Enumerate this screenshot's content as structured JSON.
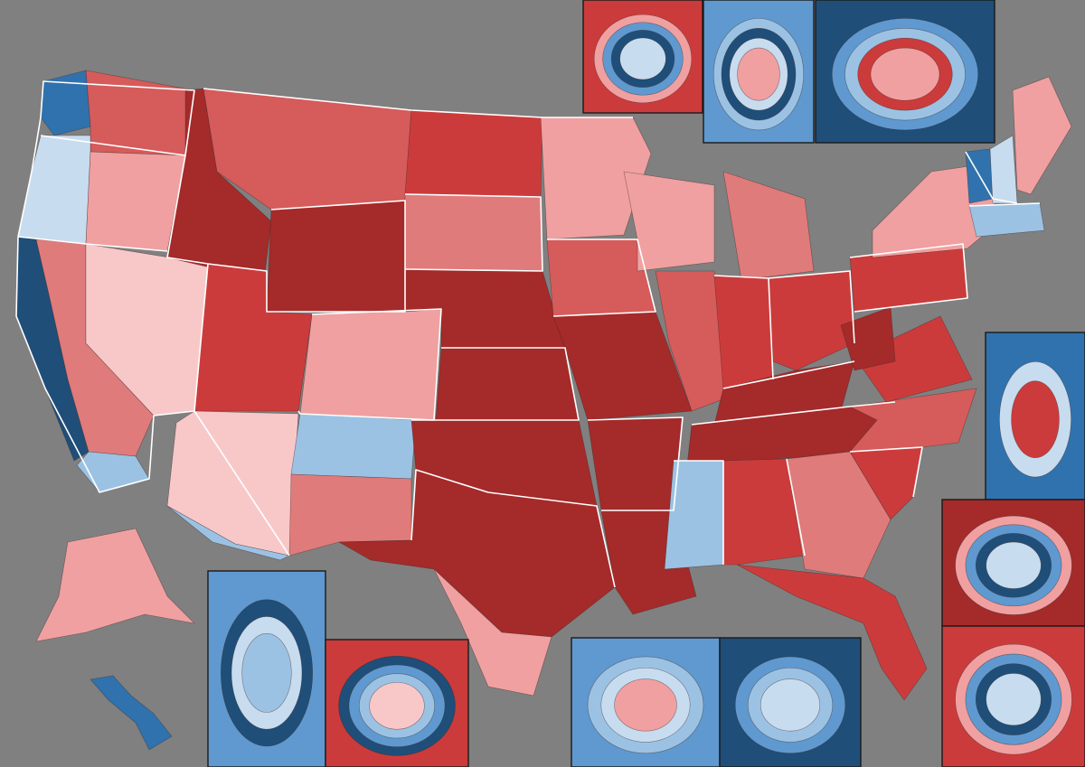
{
  "map": {
    "type": "choropleth",
    "subject": "congressional-districts",
    "background_color": "#808080",
    "border_color": "#ffffff",
    "palette": {
      "r_safe": "#a52a2a",
      "r_likely": "#cc3b3b",
      "r_lean": "#d65b5b",
      "r_tilt": "#e07b7b",
      "r_slight": "#f0a0a0",
      "r_faint": "#f8c8c8",
      "d_faint": "#c8dcef",
      "d_slight": "#9cc2e3",
      "d_lean": "#5f99cf",
      "d_likely": "#3072ad",
      "d_safe": "#1f4e79"
    },
    "regions": [
      {
        "id": "WA-west",
        "shade": "d_likely"
      },
      {
        "id": "WA-east",
        "shade": "r_lean"
      },
      {
        "id": "OR-west",
        "shade": "d_faint"
      },
      {
        "id": "OR-east",
        "shade": "r_slight"
      },
      {
        "id": "CA-coast",
        "shade": "d_safe"
      },
      {
        "id": "CA-inland",
        "shade": "r_tilt"
      },
      {
        "id": "CA-south",
        "shade": "d_slight"
      },
      {
        "id": "NV",
        "shade": "r_faint"
      },
      {
        "id": "ID",
        "shade": "r_safe"
      },
      {
        "id": "MT",
        "shade": "r_lean"
      },
      {
        "id": "WY",
        "shade": "r_safe"
      },
      {
        "id": "UT",
        "shade": "r_likely"
      },
      {
        "id": "AZ",
        "shade": "r_faint"
      },
      {
        "id": "AZ-south",
        "shade": "d_slight"
      },
      {
        "id": "CO",
        "shade": "r_slight"
      },
      {
        "id": "NM-north",
        "shade": "d_slight"
      },
      {
        "id": "NM-south",
        "shade": "r_tilt"
      },
      {
        "id": "ND",
        "shade": "r_likely"
      },
      {
        "id": "SD",
        "shade": "r_tilt"
      },
      {
        "id": "NE",
        "shade": "r_safe"
      },
      {
        "id": "KS",
        "shade": "r_safe"
      },
      {
        "id": "OK",
        "shade": "r_safe"
      },
      {
        "id": "TX",
        "shade": "r_safe"
      },
      {
        "id": "TX-south",
        "shade": "r_slight"
      },
      {
        "id": "MN",
        "shade": "r_slight"
      },
      {
        "id": "IA",
        "shade": "r_lean"
      },
      {
        "id": "MO",
        "shade": "r_safe"
      },
      {
        "id": "AR",
        "shade": "r_safe"
      },
      {
        "id": "LA",
        "shade": "r_safe"
      },
      {
        "id": "WI",
        "shade": "r_slight"
      },
      {
        "id": "IL",
        "shade": "r_lean"
      },
      {
        "id": "MI",
        "shade": "r_tilt"
      },
      {
        "id": "IN",
        "shade": "r_likely"
      },
      {
        "id": "OH",
        "shade": "r_likely"
      },
      {
        "id": "KY",
        "shade": "r_safe"
      },
      {
        "id": "TN",
        "shade": "r_safe"
      },
      {
        "id": "MS",
        "shade": "d_slight"
      },
      {
        "id": "AL",
        "shade": "r_likely"
      },
      {
        "id": "GA",
        "shade": "r_tilt"
      },
      {
        "id": "FL",
        "shade": "r_likely"
      },
      {
        "id": "SC",
        "shade": "r_likely"
      },
      {
        "id": "NC",
        "shade": "r_lean"
      },
      {
        "id": "VA",
        "shade": "r_likely"
      },
      {
        "id": "WV",
        "shade": "r_safe"
      },
      {
        "id": "PA",
        "shade": "r_likely"
      },
      {
        "id": "NY",
        "shade": "r_slight"
      },
      {
        "id": "VT",
        "shade": "d_likely"
      },
      {
        "id": "NH",
        "shade": "d_faint"
      },
      {
        "id": "ME",
        "shade": "r_slight"
      },
      {
        "id": "MA",
        "shade": "d_slight"
      },
      {
        "id": "AK",
        "shade": "r_slight"
      },
      {
        "id": "HI",
        "shade": "d_likely"
      }
    ],
    "insets": [
      {
        "id": "inset-atlanta",
        "shades": [
          "r_likely",
          "r_slight",
          "d_lean",
          "d_safe",
          "d_faint"
        ]
      },
      {
        "id": "inset-chicago",
        "shades": [
          "d_lean",
          "d_slight",
          "d_safe",
          "d_faint",
          "r_slight"
        ]
      },
      {
        "id": "inset-new-york",
        "shades": [
          "d_safe",
          "d_lean",
          "d_slight",
          "r_likely",
          "r_slight"
        ]
      },
      {
        "id": "inset-florida-south",
        "shades": [
          "d_likely",
          "d_faint",
          "r_likely"
        ]
      },
      {
        "id": "inset-charlotte",
        "shades": [
          "r_safe",
          "r_slight",
          "d_lean",
          "d_safe",
          "d_faint"
        ]
      },
      {
        "id": "inset-raleigh",
        "shades": [
          "r_likely",
          "r_slight",
          "d_lean",
          "d_safe",
          "d_faint"
        ]
      },
      {
        "id": "inset-seattle",
        "shades": [
          "d_lean",
          "d_safe",
          "d_faint",
          "d_slight"
        ]
      },
      {
        "id": "inset-houston",
        "shades": [
          "r_likely",
          "d_safe",
          "d_lean",
          "d_slight",
          "r_faint"
        ]
      },
      {
        "id": "inset-los-angeles",
        "shades": [
          "d_lean",
          "d_slight",
          "d_faint",
          "r_slight"
        ]
      },
      {
        "id": "inset-bay-area",
        "shades": [
          "d_safe",
          "d_lean",
          "d_slight",
          "d_faint"
        ]
      }
    ]
  }
}
